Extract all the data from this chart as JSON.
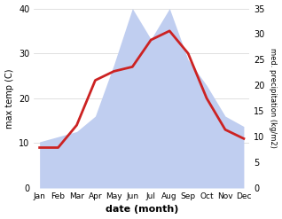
{
  "months": [
    "Jan",
    "Feb",
    "Mar",
    "Apr",
    "May",
    "Jun",
    "Jul",
    "Aug",
    "Sep",
    "Oct",
    "Nov",
    "Dec"
  ],
  "temperature": [
    9,
    9,
    14,
    24,
    26,
    27,
    33,
    35,
    30,
    20,
    13,
    11
  ],
  "precipitation": [
    9,
    10,
    11,
    14,
    24,
    35,
    29,
    35,
    25,
    20,
    14,
    12
  ],
  "temp_color": "#cc2222",
  "precip_color": "#c0cef0",
  "temp_ylim": [
    0,
    40
  ],
  "precip_ylim": [
    0,
    35
  ],
  "temp_yticks": [
    0,
    10,
    20,
    30,
    40
  ],
  "precip_yticks": [
    0,
    5,
    10,
    15,
    20,
    25,
    30,
    35
  ],
  "xlabel": "date (month)",
  "ylabel_left": "max temp (C)",
  "ylabel_right": "med. precipitation (kg/m2)",
  "bg_color": "#ffffff",
  "line_width": 2.0
}
